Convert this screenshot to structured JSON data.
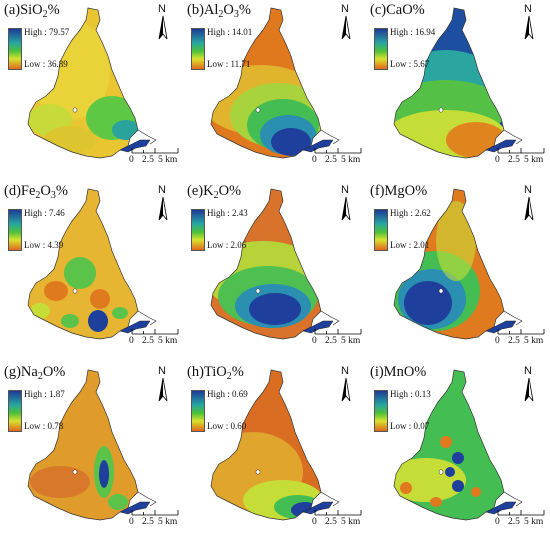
{
  "panels": [
    {
      "id": "a",
      "prefix": "(a)",
      "elem": "SiO",
      "sub": "2",
      "suffix": "%",
      "high": "High : 79.57",
      "low": "Low : 36.89"
    },
    {
      "id": "b",
      "prefix": "(b)",
      "elem": "Al",
      "sub": "2",
      "mid": "O",
      "sub2": "3",
      "suffix": "%",
      "high": "High : 14.01",
      "low": "Low : 11.71"
    },
    {
      "id": "c",
      "prefix": "(c)",
      "elem": "CaO",
      "sub": "",
      "suffix": "%",
      "high": "High : 16.94",
      "low": "Low : 5.67"
    },
    {
      "id": "d",
      "prefix": "(d)",
      "elem": "Fe",
      "sub": "2",
      "mid": "O",
      "sub2": "3",
      "suffix": "%",
      "high": "High : 7.46",
      "low": "Low : 4.39"
    },
    {
      "id": "e",
      "prefix": "(e)",
      "elem": "K",
      "sub": "2",
      "mid": "O",
      "sub2": "",
      "suffix": "%",
      "high": "High : 2.43",
      "low": "Low : 2.06"
    },
    {
      "id": "f",
      "prefix": "(f)",
      "elem": "MgO",
      "sub": "",
      "suffix": "%",
      "high": "High : 2.62",
      "low": "Low : 2.01"
    },
    {
      "id": "g",
      "prefix": "(g)",
      "elem": "Na",
      "sub": "2",
      "mid": "O",
      "sub2": "",
      "suffix": "%",
      "high": "High : 1.87",
      "low": "Low : 0.78"
    },
    {
      "id": "h",
      "prefix": "(h)",
      "elem": "TiO",
      "sub": "2",
      "suffix": "%",
      "high": "High : 0.69",
      "low": "Low : 0.60"
    },
    {
      "id": "i",
      "prefix": "(i)",
      "elem": "MnO",
      "sub": "",
      "suffix": "%",
      "high": "High : 0.13",
      "low": "Low : 0.07"
    }
  ],
  "north_label": "N",
  "scale": {
    "t0": "0",
    "t1": "2.5",
    "t2": "5 km"
  },
  "colors": {
    "high": "#1f3f9b",
    "mid": "#2fb24a",
    "mid2": "#c9e236",
    "low": "#e07a1e"
  }
}
